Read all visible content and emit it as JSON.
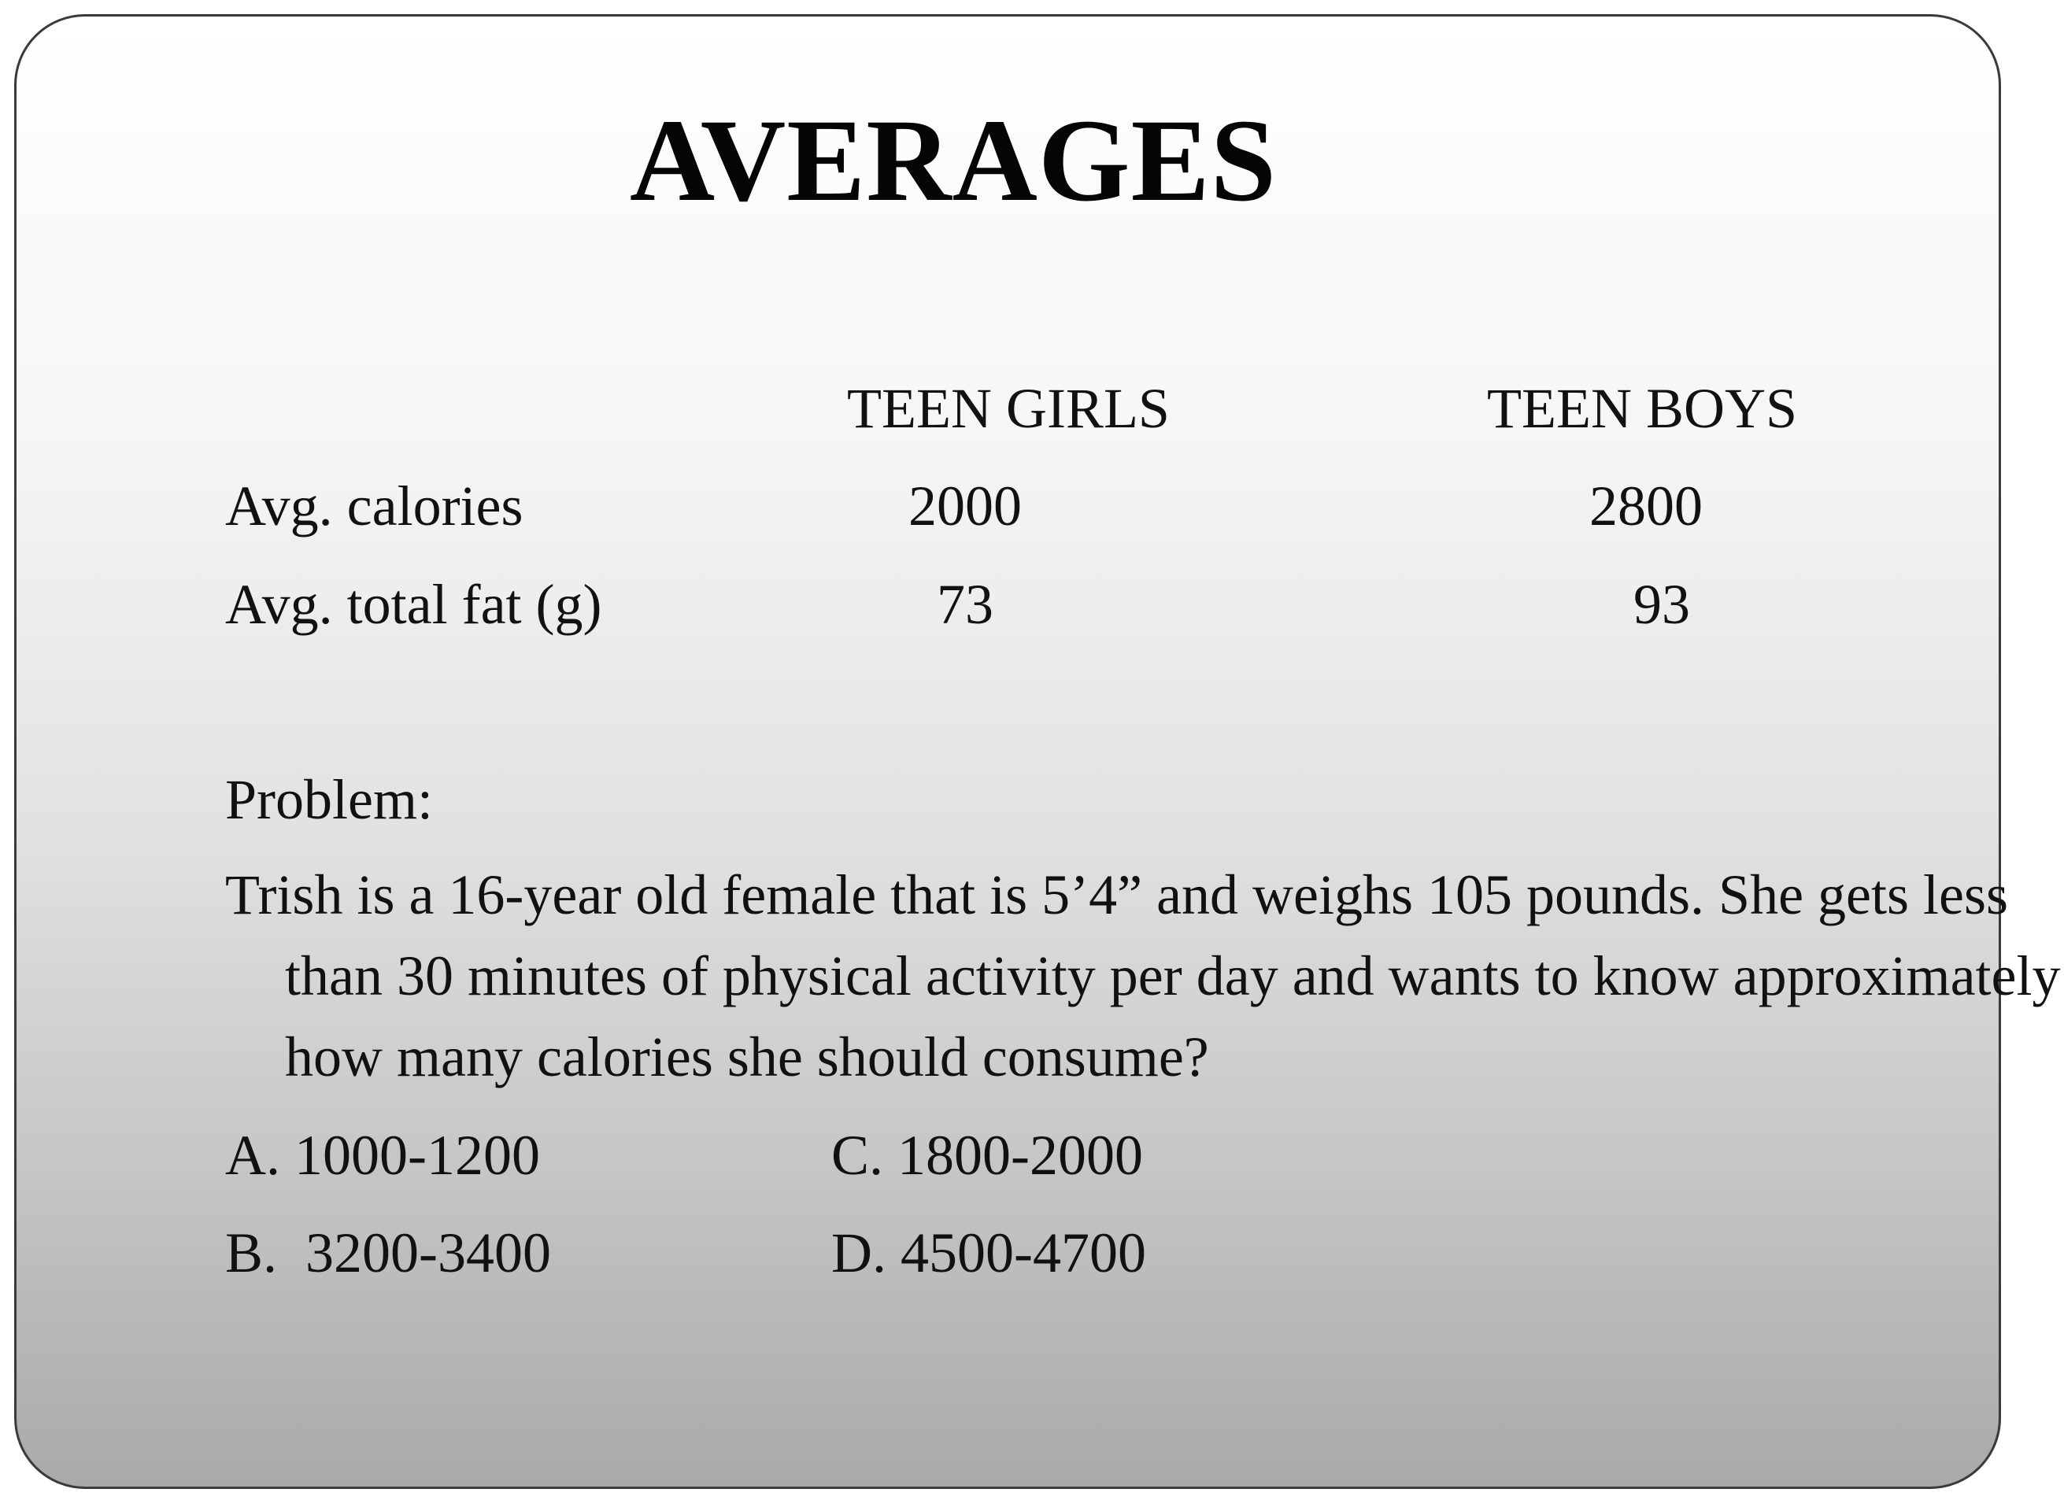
{
  "title": "AVERAGES",
  "table": {
    "columns": [
      "TEEN GIRLS",
      "TEEN BOYS"
    ],
    "rows": [
      {
        "label": "Avg. calories",
        "values": [
          "2000",
          "2800"
        ]
      },
      {
        "label": "Avg. total fat (g)",
        "values": [
          "73",
          "93"
        ]
      }
    ]
  },
  "problem": {
    "heading": "Problem:",
    "text": "Trish is a 16-year old female that is 5’4” and weighs 105 pounds.  She gets less than 30 minutes of physical activity per day and wants to know approximately how many calories she should consume?",
    "choices": {
      "a": "A. 1000-1200",
      "b": "B.  3200-3400",
      "c": "C. 1800-2000",
      "d": "D. 4500-4700"
    }
  }
}
